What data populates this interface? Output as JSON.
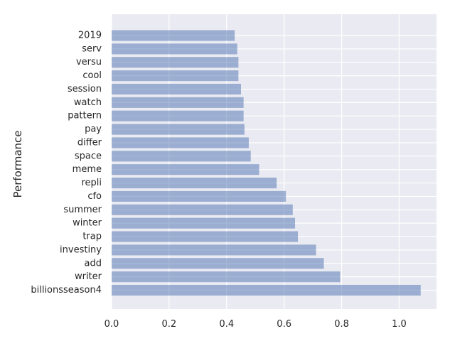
{
  "chart_data": {
    "type": "bar",
    "orientation": "horizontal",
    "title": "",
    "xlabel": "",
    "ylabel": "Performance",
    "categories": [
      "billionsseason4",
      "writer",
      "add",
      "investiny",
      "trap",
      "winter",
      "summer",
      "cfo",
      "repli",
      "meme",
      "space",
      "differ",
      "pay",
      "pattern",
      "watch",
      "session",
      "cool",
      "versu",
      "serv",
      "2019"
    ],
    "values": [
      1.075,
      0.795,
      0.738,
      0.711,
      0.648,
      0.638,
      0.63,
      0.606,
      0.574,
      0.513,
      0.484,
      0.477,
      0.462,
      0.459,
      0.459,
      0.45,
      0.441,
      0.441,
      0.437,
      0.428
    ],
    "xlim": [
      0,
      1.13
    ],
    "xticks": [
      0.0,
      0.2,
      0.4,
      0.6,
      0.8,
      1.0
    ],
    "xtick_labels": [
      "0.0",
      "0.2",
      "0.4",
      "0.6",
      "0.8",
      "1.0"
    ],
    "grid": true,
    "bar_color": "#4c72b0",
    "bar_alpha": 0.5,
    "background_color": "#eaeaf2",
    "grid_color": "#ffffff"
  }
}
